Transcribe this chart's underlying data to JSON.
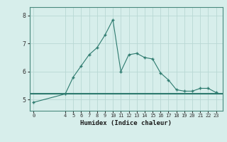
{
  "title": "",
  "xlabel": "Humidex (Indice chaleur)",
  "x_values": [
    0,
    4,
    5,
    6,
    7,
    8,
    9,
    10,
    11,
    12,
    13,
    14,
    15,
    16,
    17,
    18,
    19,
    20,
    21,
    22,
    23
  ],
  "y_values": [
    4.9,
    5.2,
    5.8,
    6.2,
    6.6,
    6.85,
    7.3,
    7.85,
    6.0,
    6.6,
    6.65,
    6.5,
    6.45,
    5.95,
    5.7,
    5.35,
    5.3,
    5.3,
    5.4,
    5.4,
    5.25
  ],
  "hline_y": 5.2,
  "line_color": "#2d7a6e",
  "bg_color": "#d7eeeb",
  "grid_color": "#b8d8d4",
  "ylim": [
    4.6,
    8.3
  ],
  "yticks": [
    5,
    6,
    7,
    8
  ],
  "xlim": [
    -0.5,
    23.8
  ],
  "x_tick_positions": [
    0,
    4,
    5,
    6,
    7,
    8,
    9,
    10,
    11,
    12,
    13,
    14,
    15,
    16,
    17,
    18,
    19,
    20,
    21,
    22,
    23
  ]
}
